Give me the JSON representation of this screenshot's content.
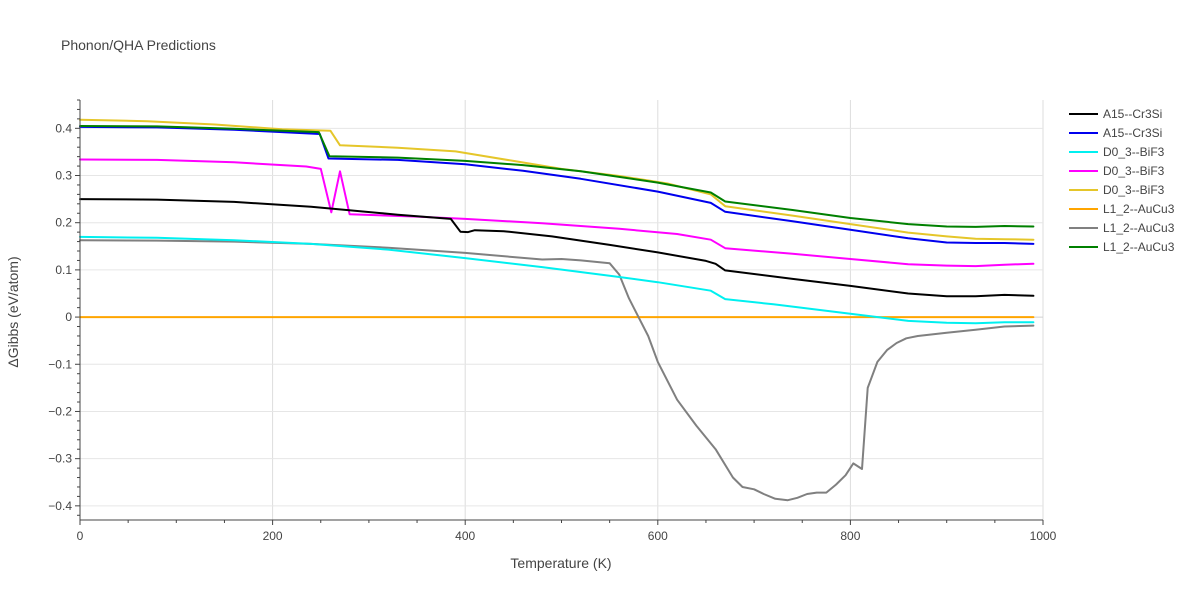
{
  "chart_data": {
    "type": "line",
    "title": "Phonon/QHA Predictions",
    "xlabel": "Temperature (K)",
    "ylabel": "ΔGibbs (eV/atom)",
    "xlim": [
      0,
      1000
    ],
    "ylim": [
      -0.43,
      0.46
    ],
    "x_ticks": [
      0,
      200,
      400,
      600,
      800,
      1000
    ],
    "x_tick_labels": [
      "0",
      "200",
      "400",
      "600",
      "800",
      "1000"
    ],
    "y_ticks": [
      -0.4,
      -0.3,
      -0.2,
      -0.1,
      0,
      0.1,
      0.2,
      0.3,
      0.4
    ],
    "y_tick_labels": [
      "−0.4",
      "−0.3",
      "−0.2",
      "−0.1",
      "0",
      "0.1",
      "0.2",
      "0.3",
      "0.4"
    ],
    "grid": true,
    "legend_position": "right",
    "series": [
      {
        "name": "A15--Cr3Si",
        "color": "#000000",
        "x": [
          0,
          80,
          160,
          240,
          330,
          385,
          395,
          403,
          410,
          440,
          490,
          550,
          600,
          650,
          660,
          670,
          740,
          800,
          860,
          900,
          930,
          960,
          990
        ],
        "y": [
          0.25,
          0.249,
          0.244,
          0.234,
          0.217,
          0.208,
          0.181,
          0.18,
          0.184,
          0.182,
          0.171,
          0.153,
          0.137,
          0.119,
          0.113,
          0.099,
          0.081,
          0.066,
          0.05,
          0.044,
          0.044,
          0.047,
          0.045
        ]
      },
      {
        "name": "A15--Cr3Si",
        "color": "#0000ee",
        "x": [
          0,
          80,
          160,
          249,
          258,
          330,
          400,
          460,
          520,
          600,
          655,
          670,
          740,
          800,
          860,
          900,
          930,
          960,
          990
        ],
        "y": [
          0.403,
          0.402,
          0.397,
          0.388,
          0.336,
          0.333,
          0.324,
          0.31,
          0.293,
          0.266,
          0.242,
          0.223,
          0.203,
          0.185,
          0.167,
          0.158,
          0.157,
          0.157,
          0.155
        ]
      },
      {
        "name": "D0_3--BiF3",
        "color": "#00f0f0",
        "x": [
          0,
          80,
          160,
          240,
          320,
          400,
          480,
          560,
          600,
          655,
          670,
          720,
          780,
          820,
          860,
          900,
          930,
          960,
          990
        ],
        "y": [
          0.17,
          0.168,
          0.163,
          0.155,
          0.143,
          0.125,
          0.106,
          0.085,
          0.074,
          0.056,
          0.038,
          0.027,
          0.012,
          0.002,
          -0.008,
          -0.012,
          -0.013,
          -0.011,
          -0.011
        ]
      },
      {
        "name": "D0_3--BiF3",
        "color": "#ff00ff",
        "x": [
          0,
          80,
          160,
          235,
          250,
          261,
          270,
          280,
          350,
          400,
          480,
          560,
          620,
          655,
          670,
          740,
          800,
          860,
          900,
          930,
          960,
          990
        ],
        "y": [
          0.334,
          0.333,
          0.328,
          0.319,
          0.314,
          0.222,
          0.309,
          0.218,
          0.213,
          0.208,
          0.199,
          0.187,
          0.176,
          0.164,
          0.146,
          0.134,
          0.123,
          0.112,
          0.109,
          0.108,
          0.111,
          0.113
        ]
      },
      {
        "name": "D0_3--BiF3",
        "color": "#e5c62a",
        "x": [
          0,
          70,
          140,
          210,
          260,
          270,
          330,
          390,
          450,
          500,
          560,
          610,
          655,
          670,
          740,
          800,
          860,
          900,
          930,
          960,
          990
        ],
        "y": [
          0.418,
          0.415,
          0.408,
          0.398,
          0.395,
          0.364,
          0.359,
          0.351,
          0.331,
          0.314,
          0.299,
          0.283,
          0.26,
          0.235,
          0.215,
          0.197,
          0.179,
          0.171,
          0.166,
          0.165,
          0.164
        ]
      },
      {
        "name": "L1_2--AuCu3",
        "color": "#ffa500",
        "x": [
          0,
          200,
          400,
          600,
          800,
          990
        ],
        "y": [
          0,
          0,
          0,
          0,
          0,
          0
        ]
      },
      {
        "name": "L1_2--AuCu3",
        "color": "#808080",
        "x": [
          0,
          80,
          160,
          240,
          320,
          400,
          480,
          500,
          520,
          550,
          560,
          570,
          580,
          590,
          600,
          620,
          640,
          660,
          678,
          688,
          700,
          710,
          722,
          735,
          745,
          755,
          765,
          775,
          785,
          795,
          803,
          812,
          818,
          828,
          838,
          848,
          858,
          870,
          900,
          930,
          960,
          990
        ],
        "y": [
          0.163,
          0.162,
          0.16,
          0.155,
          0.147,
          0.136,
          0.122,
          0.123,
          0.12,
          0.114,
          0.09,
          0.04,
          0.0,
          -0.04,
          -0.095,
          -0.175,
          -0.23,
          -0.28,
          -0.34,
          -0.36,
          -0.365,
          -0.375,
          -0.385,
          -0.388,
          -0.383,
          -0.375,
          -0.372,
          -0.372,
          -0.355,
          -0.335,
          -0.31,
          -0.322,
          -0.15,
          -0.095,
          -0.07,
          -0.055,
          -0.045,
          -0.04,
          -0.033,
          -0.027,
          -0.02,
          -0.018
        ]
      },
      {
        "name": "L1_2--AuCu3",
        "color": "#008000",
        "x": [
          0,
          80,
          160,
          248,
          259,
          330,
          400,
          460,
          520,
          600,
          655,
          670,
          740,
          800,
          860,
          900,
          930,
          960,
          990
        ],
        "y": [
          0.405,
          0.404,
          0.399,
          0.392,
          0.341,
          0.338,
          0.331,
          0.322,
          0.309,
          0.285,
          0.264,
          0.245,
          0.227,
          0.21,
          0.197,
          0.192,
          0.191,
          0.193,
          0.192
        ]
      }
    ]
  }
}
